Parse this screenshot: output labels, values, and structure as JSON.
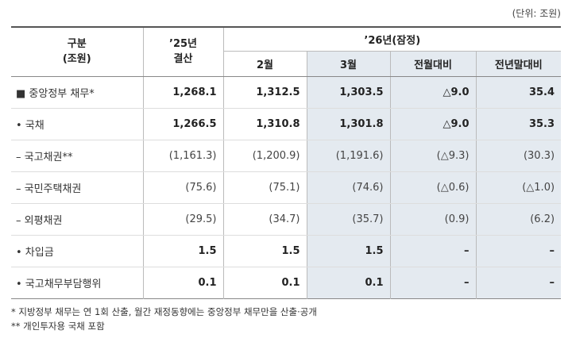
{
  "unit": "(단위: 조원)",
  "header": {
    "category": [
      "구분",
      "(조원)"
    ],
    "y2025": [
      "’25년",
      "결산"
    ],
    "y2026": "’26년(잠정)",
    "sub": [
      "2월",
      "3월",
      "전월대비",
      "전년말대비"
    ]
  },
  "rows": [
    {
      "label": "■  중앙정부 채무*",
      "cells": [
        "1,268.1",
        "1,312.5",
        "1,303.5",
        "△9.0",
        "35.4"
      ],
      "paren": false
    },
    {
      "label": "•  국채",
      "cells": [
        "1,266.5",
        "1,310.8",
        "1,301.8",
        "△9.0",
        "35.3"
      ],
      "paren": false
    },
    {
      "label": "–  국고채권**",
      "cells": [
        "(1,161.3)",
        "(1,200.9)",
        "(1,191.6)",
        "(△9.3)",
        "(30.3)"
      ],
      "paren": true
    },
    {
      "label": "–  국민주택채권",
      "cells": [
        "(75.6)",
        "(75.1)",
        "(74.6)",
        "(△0.6)",
        "(△1.0)"
      ],
      "paren": true
    },
    {
      "label": "–  외평채권",
      "cells": [
        "(29.5)",
        "(34.7)",
        "(35.7)",
        "(0.9)",
        "(6.2)"
      ],
      "paren": true
    },
    {
      "label": "•  차입금",
      "cells": [
        "1.5",
        "1.5",
        "1.5",
        "–",
        "–"
      ],
      "paren": false
    },
    {
      "label": "•  국고채무부담행위",
      "cells": [
        "0.1",
        "0.1",
        "0.1",
        "–",
        "–"
      ],
      "paren": false
    }
  ],
  "footnotes": [
    "  * 지방정부 채무는 연 1회 산출, 월간 재정동향에는 중앙정부 채무만을 산출·공개",
    "** 개인투자용 국채 포함"
  ]
}
